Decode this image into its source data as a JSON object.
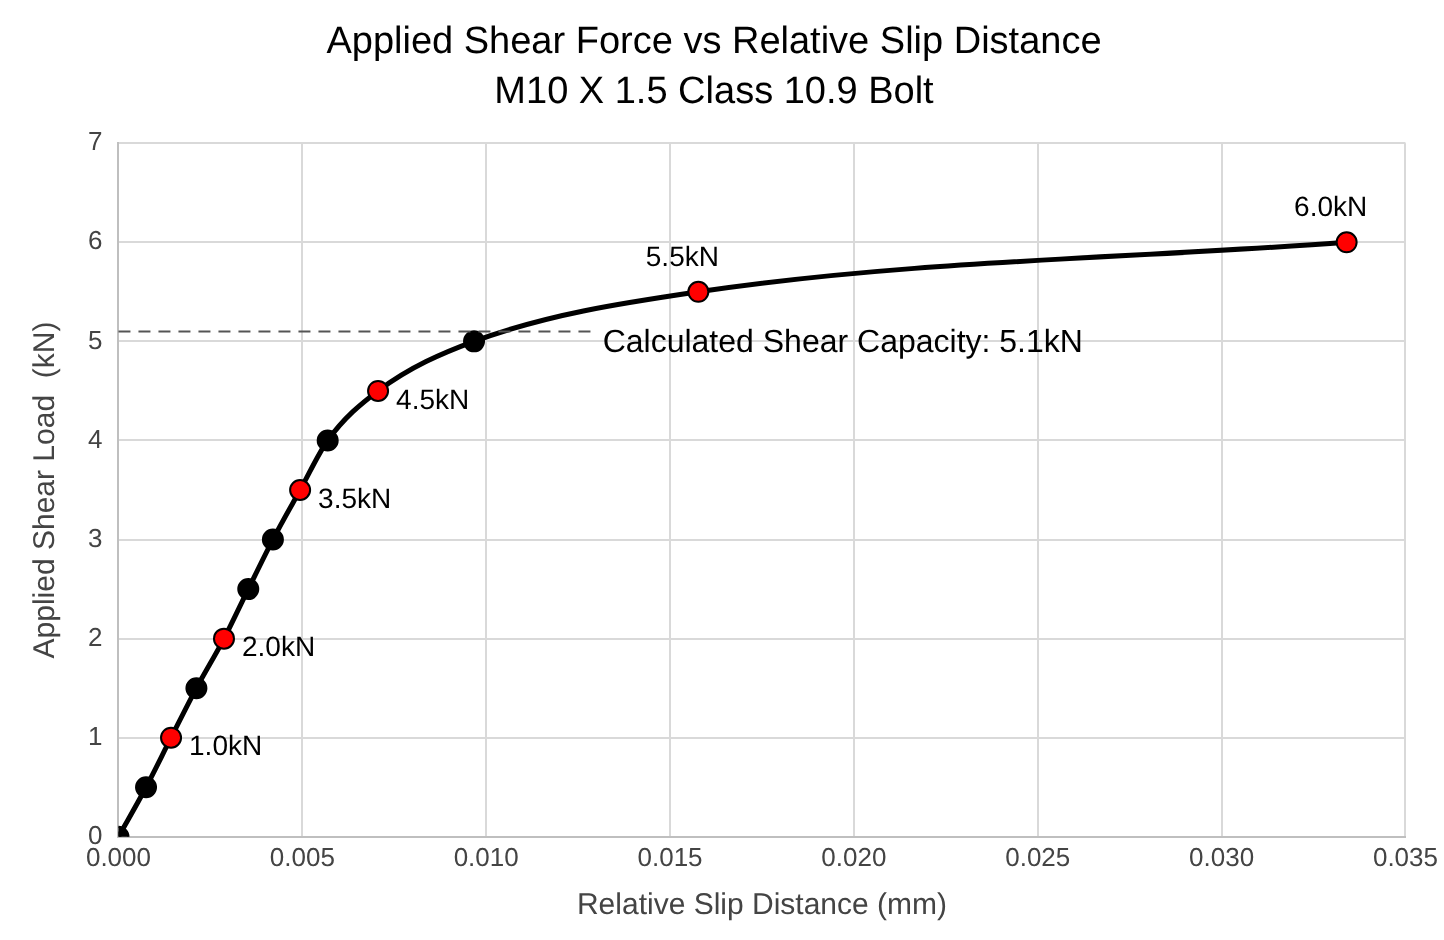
{
  "chart_data": {
    "type": "line",
    "title": "Applied Shear Force vs Relative Slip Distance",
    "subtitle": "M10 X 1.5 Class 10.9 Bolt",
    "xlabel": "Relative Slip Distance (mm)",
    "ylabel": "Applied Shear Load  (kN)",
    "x": [
      0,
      0.00075,
      0.00143,
      0.00212,
      0.00287,
      0.00353,
      0.0042,
      0.00494,
      0.00569,
      0.00706,
      0.00967,
      0.01577,
      0.0334
    ],
    "series": [
      {
        "color": "#000000",
        "colors": [
          "#000000",
          "#000000",
          "#ff0000",
          "#000000",
          "#ff0000",
          "#000000",
          "#000000",
          "#ff0000",
          "#000000",
          "#ff0000",
          "#000000",
          "#ff0000",
          "#ff0000"
        ],
        "values": [
          0,
          0.5,
          1.0,
          1.5,
          2.0,
          2.5,
          3.0,
          3.5,
          4.0,
          4.5,
          5.0,
          5.5,
          6.0
        ],
        "value_labels": [
          null,
          null,
          "1.0kN",
          null,
          "2.0kN",
          null,
          null,
          "3.5kN",
          null,
          "4.5kN",
          null,
          "5.5kN",
          "6.0kN"
        ]
      }
    ],
    "xlim": [
      0,
      0.035
    ],
    "xticks": [
      {
        "value": 0,
        "label": "0.000"
      },
      {
        "value": 0.005,
        "label": "0.005"
      },
      {
        "value": 0.01,
        "label": "0.010"
      },
      {
        "value": 0.015,
        "label": "0.015"
      },
      {
        "value": 0.02,
        "label": "0.020"
      },
      {
        "value": 0.025,
        "label": "0.025"
      },
      {
        "value": 0.03,
        "label": "0.030"
      },
      {
        "value": 0.035,
        "label": "0.035"
      }
    ],
    "ylim": [
      0,
      7
    ],
    "yticks": [
      0,
      1,
      2,
      3,
      4,
      5,
      6,
      7
    ],
    "ref_lines": [
      {
        "axis": "y",
        "value": 5.1,
        "label": "Calculated Shear Capacity: 5.1kN",
        "color": "#555555",
        "line_style": "dashed"
      }
    ],
    "grid": true,
    "legend": false,
    "marker": "circle",
    "line_style": "solid"
  }
}
